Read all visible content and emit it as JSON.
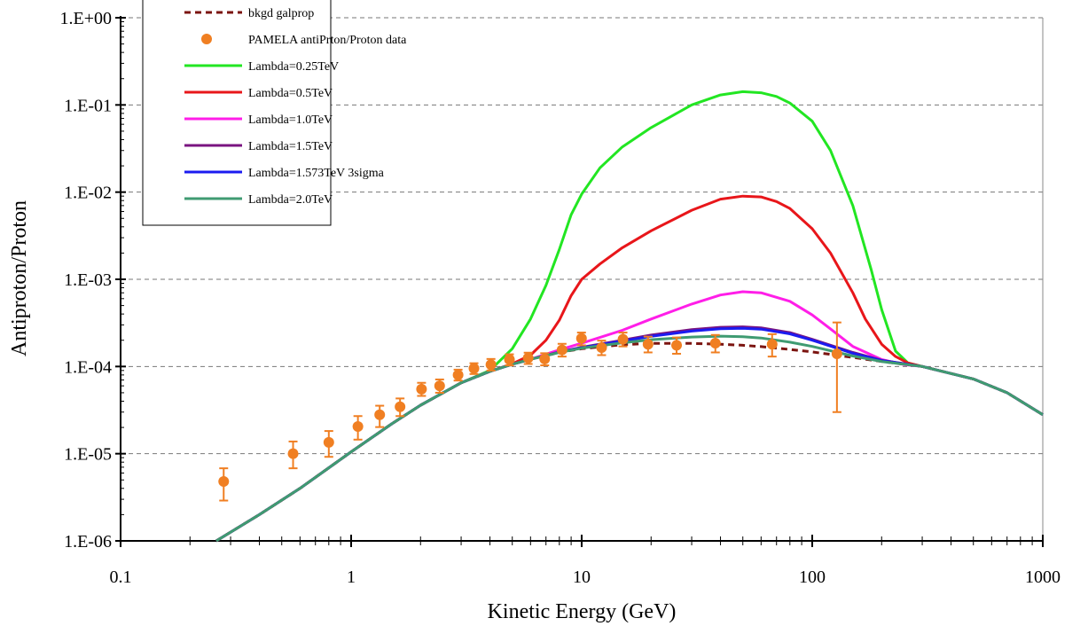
{
  "chart_data": {
    "type": "line",
    "title": "",
    "xlabel": "Kinetic Energy (GeV)",
    "ylabel": "Antiproton/Proton",
    "x_scale": "log",
    "y_scale": "log",
    "xlim": [
      0.1,
      1000
    ],
    "ylim": [
      1e-06,
      1
    ],
    "x_ticks": [
      {
        "value": 0.1,
        "label": "0.1"
      },
      {
        "value": 1,
        "label": "1"
      },
      {
        "value": 10,
        "label": "10"
      },
      {
        "value": 100,
        "label": "100"
      },
      {
        "value": 1000,
        "label": "1000"
      }
    ],
    "y_ticks": [
      {
        "value": 1e-06,
        "label": "1.E-06"
      },
      {
        "value": 1e-05,
        "label": "1.E-05"
      },
      {
        "value": 0.0001,
        "label": "1.E-04"
      },
      {
        "value": 0.001,
        "label": "1.E-03"
      },
      {
        "value": 0.01,
        "label": "1.E-02"
      },
      {
        "value": 0.1,
        "label": "1.E-01"
      },
      {
        "value": 1,
        "label": "1.E+00"
      }
    ],
    "gridlines": "horizontal dashed at major y ticks",
    "legend_position": "top-left",
    "colors": {
      "pamela": "#f07f22",
      "bkgd": "#7b1410"
    },
    "series": [
      {
        "name": "bkgd galprop",
        "kind": "line",
        "dash": true,
        "color": "#7b1410",
        "x": [
          0.26,
          0.4,
          0.6,
          1,
          1.5,
          2,
          3,
          4,
          5,
          6,
          8,
          10,
          15,
          20,
          30,
          40,
          50,
          60,
          80,
          100,
          150,
          200,
          300,
          500,
          700,
          1000
        ],
        "y": [
          9.5e-07,
          2e-06,
          4e-06,
          1.05e-05,
          2.2e-05,
          3.6e-05,
          6.5e-05,
          8.8e-05,
          0.000106,
          0.000121,
          0.000145,
          0.00016,
          0.000178,
          0.000184,
          0.000184,
          0.00018,
          0.000175,
          0.000169,
          0.000157,
          0.000147,
          0.000127,
          0.000114,
          0.0001,
          7.2e-05,
          5e-05,
          2.8e-05
        ]
      },
      {
        "name": "PAMELA antiPrton/Proton data",
        "kind": "scatter",
        "color": "#f07f22",
        "x": [
          0.28,
          0.56,
          0.8,
          1.07,
          1.33,
          1.63,
          2.02,
          2.42,
          2.91,
          3.41,
          4.04,
          4.86,
          5.86,
          6.91,
          8.22,
          9.98,
          12.2,
          15.1,
          19.4,
          25.8,
          38.0,
          67.0,
          128.0
        ],
        "y": [
          4.8e-06,
          1e-05,
          1.35e-05,
          2.05e-05,
          2.8e-05,
          3.45e-05,
          5.5e-05,
          6e-05,
          8e-05,
          9.5e-05,
          0.000105,
          0.00012,
          0.000125,
          0.000122,
          0.000155,
          0.00021,
          0.000165,
          0.000205,
          0.00018,
          0.000175,
          0.000185,
          0.00018,
          0.00014
        ],
        "y_low": [
          2.9e-06,
          6.8e-06,
          9.2e-06,
          1.45e-05,
          2.02e-05,
          2.7e-05,
          4.6e-05,
          5e-05,
          6.9e-05,
          8.2e-05,
          9e-05,
          0.000103,
          0.000107,
          0.000103,
          0.00013,
          0.000175,
          0.000135,
          0.00017,
          0.000145,
          0.00014,
          0.000145,
          0.00013,
          3e-05
        ],
        "y_high": [
          6.8e-06,
          1.38e-05,
          1.82e-05,
          2.7e-05,
          3.55e-05,
          4.3e-05,
          6.5e-05,
          7.1e-05,
          9.2e-05,
          0.000109,
          0.000122,
          0.000138,
          0.000144,
          0.000142,
          0.000182,
          0.000245,
          0.000198,
          0.000245,
          0.00022,
          0.000215,
          0.00023,
          0.000235,
          0.00032
        ]
      },
      {
        "name": "Lambda=0.25TeV",
        "kind": "line",
        "color": "#22e622",
        "x": [
          0.26,
          0.4,
          0.6,
          1,
          1.5,
          2,
          3,
          4,
          5,
          6,
          7,
          8,
          9,
          10,
          12,
          15,
          20,
          30,
          40,
          50,
          60,
          70,
          80,
          100,
          120,
          150,
          180,
          200,
          230,
          260,
          300,
          500,
          700,
          1000
        ],
        "y": [
          9.5e-07,
          2e-06,
          4e-06,
          1.05e-05,
          2.2e-05,
          3.6e-05,
          6.5e-05,
          9e-05,
          0.00016,
          0.00035,
          0.00085,
          0.0022,
          0.0055,
          0.0095,
          0.019,
          0.033,
          0.055,
          0.1,
          0.13,
          0.142,
          0.138,
          0.125,
          0.105,
          0.065,
          0.03,
          0.007,
          0.0013,
          0.00045,
          0.00015,
          0.00011,
          0.0001,
          7.2e-05,
          5e-05,
          2.8e-05
        ]
      },
      {
        "name": "Lambda=0.5TeV",
        "kind": "line",
        "color": "#e8161a",
        "x": [
          0.26,
          0.4,
          0.6,
          1,
          1.5,
          2,
          3,
          4,
          5,
          6,
          7,
          8,
          9,
          10,
          12,
          15,
          20,
          30,
          40,
          50,
          60,
          70,
          80,
          100,
          120,
          150,
          170,
          200,
          230,
          260,
          300,
          500,
          700,
          1000
        ],
        "y": [
          9.5e-07,
          2e-06,
          4e-06,
          1.05e-05,
          2.2e-05,
          3.6e-05,
          6.5e-05,
          8.8e-05,
          0.000107,
          0.000135,
          0.0002,
          0.00034,
          0.00065,
          0.001,
          0.0015,
          0.0023,
          0.0036,
          0.0062,
          0.0083,
          0.009,
          0.0088,
          0.0078,
          0.0065,
          0.0038,
          0.002,
          0.0007,
          0.00035,
          0.00018,
          0.00013,
          0.00011,
          0.0001,
          7.2e-05,
          5e-05,
          2.8e-05
        ]
      },
      {
        "name": "Lambda=1.0TeV",
        "kind": "line",
        "color": "#ff1ee8",
        "x": [
          0.26,
          0.4,
          0.6,
          1,
          1.5,
          2,
          3,
          4,
          5,
          6,
          8,
          10,
          15,
          20,
          30,
          40,
          50,
          60,
          80,
          100,
          120,
          150,
          200,
          250,
          300,
          500,
          700,
          1000
        ],
        "y": [
          9.5e-07,
          2e-06,
          4e-06,
          1.05e-05,
          2.2e-05,
          3.6e-05,
          6.5e-05,
          8.8e-05,
          0.000106,
          0.000121,
          0.000155,
          0.000185,
          0.00026,
          0.00035,
          0.00052,
          0.00066,
          0.00072,
          0.0007,
          0.00056,
          0.00039,
          0.00027,
          0.00017,
          0.00012,
          0.000105,
          0.0001,
          7.2e-05,
          5e-05,
          2.8e-05
        ]
      },
      {
        "name": "Lambda=1.5TeV",
        "kind": "line",
        "color": "#7a1480",
        "x": [
          0.26,
          0.4,
          0.6,
          1,
          1.5,
          2,
          3,
          4,
          5,
          6,
          8,
          10,
          15,
          20,
          30,
          40,
          50,
          60,
          80,
          100,
          150,
          200,
          300,
          500,
          700,
          1000
        ],
        "y": [
          9.5e-07,
          2e-06,
          4e-06,
          1.05e-05,
          2.2e-05,
          3.6e-05,
          6.5e-05,
          8.8e-05,
          0.000106,
          0.000121,
          0.000147,
          0.000166,
          0.0002,
          0.00023,
          0.000265,
          0.000282,
          0.000285,
          0.000278,
          0.000245,
          0.000205,
          0.000145,
          0.000118,
          0.0001,
          7.2e-05,
          5e-05,
          2.8e-05
        ]
      },
      {
        "name": "Lambda=1.573TeV 3sigma",
        "kind": "line",
        "color": "#1b1bf0",
        "x": [
          0.26,
          0.4,
          0.6,
          1,
          1.5,
          2,
          3,
          4,
          5,
          6,
          8,
          10,
          15,
          20,
          30,
          40,
          50,
          60,
          80,
          100,
          150,
          200,
          300,
          500,
          700,
          1000
        ],
        "y": [
          9.5e-07,
          2e-06,
          4e-06,
          1.05e-05,
          2.2e-05,
          3.6e-05,
          6.5e-05,
          8.8e-05,
          0.000106,
          0.000121,
          0.000146,
          0.000164,
          0.000196,
          0.000222,
          0.000255,
          0.000271,
          0.000274,
          0.000268,
          0.000237,
          0.0002,
          0.000142,
          0.000117,
          0.0001,
          7.2e-05,
          5e-05,
          2.8e-05
        ]
      },
      {
        "name": "Lambda=2.0TeV",
        "kind": "line",
        "color": "#3f9b72",
        "x": [
          0.26,
          0.4,
          0.6,
          1,
          1.5,
          2,
          3,
          4,
          5,
          6,
          8,
          10,
          15,
          20,
          30,
          40,
          50,
          60,
          80,
          100,
          150,
          200,
          300,
          500,
          700,
          1000
        ],
        "y": [
          9.5e-07,
          2e-06,
          4e-06,
          1.05e-05,
          2.2e-05,
          3.6e-05,
          6.5e-05,
          8.8e-05,
          0.000106,
          0.000121,
          0.000145,
          0.000162,
          0.000187,
          0.000203,
          0.000218,
          0.000223,
          0.00022,
          0.000212,
          0.00019,
          0.00017,
          0.000132,
          0.000114,
          0.0001,
          7.2e-05,
          5e-05,
          2.8e-05
        ]
      }
    ]
  }
}
